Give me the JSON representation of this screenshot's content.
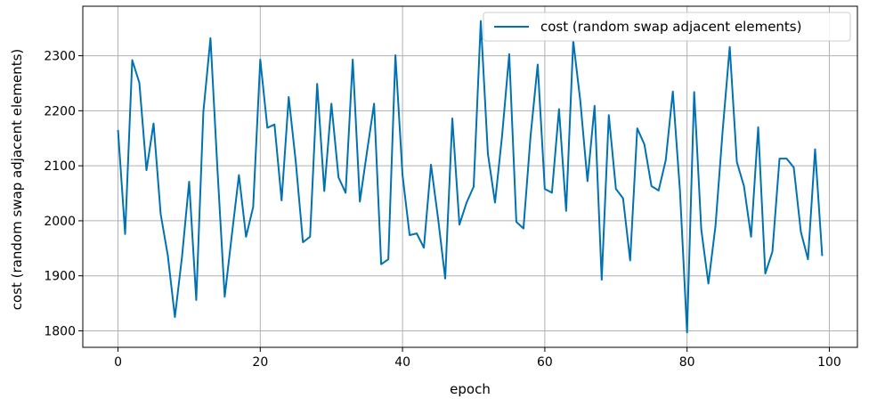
{
  "chart_data": {
    "type": "line",
    "xlabel": "epoch",
    "ylabel": "cost (random swap adjacent elements)",
    "xlim": [
      -4.95,
      103.95
    ],
    "ylim": [
      1770,
      2390
    ],
    "xticks": [
      0,
      20,
      40,
      60,
      80,
      100
    ],
    "yticks": [
      1800,
      1900,
      2000,
      2100,
      2200,
      2300
    ],
    "grid": true,
    "legend_position": "top-right",
    "series": [
      {
        "name": "cost (random swap adjacent elements)",
        "color": "#0072b2",
        "x": [
          0,
          1,
          2,
          3,
          4,
          5,
          6,
          7,
          8,
          9,
          10,
          11,
          12,
          13,
          14,
          15,
          16,
          17,
          18,
          19,
          20,
          21,
          22,
          23,
          24,
          25,
          26,
          27,
          28,
          29,
          30,
          31,
          32,
          33,
          34,
          35,
          36,
          37,
          38,
          39,
          40,
          41,
          42,
          43,
          44,
          45,
          46,
          47,
          48,
          49,
          50,
          51,
          52,
          53,
          54,
          55,
          56,
          57,
          58,
          59,
          60,
          61,
          62,
          63,
          64,
          65,
          66,
          67,
          68,
          69,
          70,
          71,
          72,
          73,
          74,
          75,
          76,
          77,
          78,
          79,
          80,
          81,
          82,
          83,
          84,
          85,
          86,
          87,
          88,
          89,
          90,
          91,
          92,
          93,
          94,
          95,
          96,
          97,
          98,
          99
        ],
        "values": [
          2165,
          1976,
          2292,
          2251,
          2092,
          2177,
          2012,
          1937,
          1825,
          1935,
          2071,
          1856,
          2198,
          2332,
          2089,
          1862,
          1974,
          2083,
          1971,
          2025,
          2293,
          2169,
          2175,
          2037,
          2225,
          2106,
          1961,
          1971,
          2249,
          2054,
          2213,
          2079,
          2051,
          2293,
          2035,
          2125,
          2213,
          1921,
          1930,
          2301,
          2083,
          1974,
          1977,
          1951,
          2102,
          2004,
          1895,
          2186,
          1993,
          2033,
          2062,
          2363,
          2122,
          2033,
          2155,
          2303,
          1998,
          1986,
          2154,
          2284,
          2058,
          2051,
          2203,
          2018,
          2327,
          2217,
          2072,
          2209,
          1893,
          2192,
          2058,
          2041,
          1928,
          2168,
          2139,
          2063,
          2055,
          2110,
          2235,
          2055,
          1797,
          2234,
          1984,
          1886,
          1991,
          2163,
          2316,
          2107,
          2063,
          1971,
          2170,
          1904,
          1944,
          2113,
          2113,
          2097,
          1980,
          1930,
          2130,
          1936
        ]
      }
    ]
  }
}
